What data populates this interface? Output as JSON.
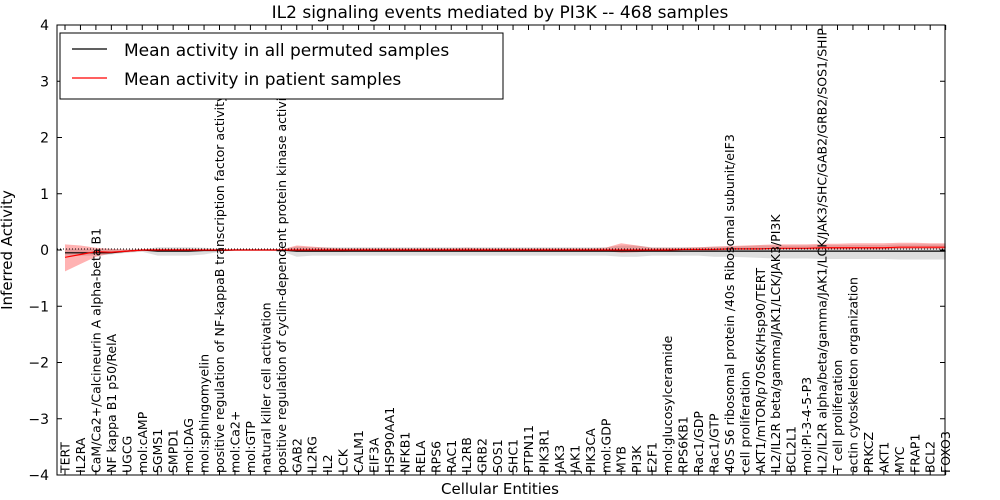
{
  "chart_data": {
    "type": "line",
    "title": "IL2 signaling events mediated by PI3K -- 468 samples",
    "xlabel": "Cellular Entities",
    "ylabel": "Inferred Activity",
    "ylim": [
      -4,
      4
    ],
    "yticks": [
      -4,
      -3,
      -2,
      -1,
      0,
      1,
      2,
      3,
      4
    ],
    "ytick_labels": [
      "−4",
      "−3",
      "−2",
      "−1",
      "0",
      "1",
      "2",
      "3",
      "4"
    ],
    "legend_position": "top-left",
    "categories": [
      "TERT",
      "IL2RA",
      "CaM/Ca2+/Calcineurin A alpha-beta B1",
      "NF kappa B1 p50/RelA",
      "UGCG",
      "mol:cAMP",
      "SGMS1",
      "SMPD1",
      "mol:DAG",
      "mol:sphingomyelin",
      "positive regulation of NF-kappaB transcription factor activity",
      "mol:Ca2+",
      "mol:GTP",
      "natural killer cell activation",
      "positive regulation of cyclin-dependent protein kinase activity",
      "GAB2",
      "IL2RG",
      "IL2",
      "LCK",
      "CALM1",
      "EIF3A",
      "HSP90AA1",
      "NFKB1",
      "RELA",
      "RPS6",
      "RAC1",
      "IL2RB",
      "GRB2",
      "SOS1",
      "SHC1",
      "PTPN11",
      "PIK3R1",
      "JAK3",
      "JAK1",
      "PIK3CA",
      "mol:GDP",
      "MYB",
      "PI3K",
      "E2F1",
      "mol:glucosylceramide",
      "RPS6KB1",
      "Rac1/GDP",
      "Rac1/GTP",
      "40S S6 ribosomal protein /40s Ribosomal subunit/eIF3",
      "cell proliferation",
      "AKT1/mTOR/p70S6K/Hsp90/TERT",
      "IL2/IL2R beta/gamma/JAK1/LCK/JAK3/PI3K",
      "BCL2L1",
      "mol:PI-3-4-5-P3",
      "IL2/IL2R alpha/beta/gamma/JAK1/LCK/JAK3/SHC/GAB2/GRB2/SOS1/SHIP",
      "T cell proliferation",
      "actin cytoskeleton organization",
      "PRKCZ",
      "AKT1",
      "MYC",
      "FRAP1",
      "BCL2",
      "FOXO3"
    ],
    "series": [
      {
        "name": "Mean activity in all permuted samples",
        "color": "#000000",
        "values": [
          -0.05,
          -0.05,
          -0.05,
          -0.05,
          -0.02,
          0,
          -0.02,
          -0.02,
          -0.02,
          -0.01,
          -0.01,
          0,
          0,
          0,
          0,
          -0.02,
          -0.02,
          -0.02,
          -0.02,
          -0.02,
          -0.02,
          -0.02,
          -0.02,
          -0.02,
          -0.02,
          -0.02,
          -0.02,
          -0.02,
          -0.02,
          -0.02,
          -0.02,
          -0.02,
          -0.02,
          -0.02,
          -0.02,
          -0.02,
          -0.02,
          -0.02,
          -0.02,
          -0.02,
          -0.02,
          -0.02,
          -0.02,
          -0.02,
          -0.02,
          -0.02,
          -0.02,
          -0.02,
          -0.02,
          -0.02,
          -0.02,
          -0.02,
          -0.02,
          -0.02,
          -0.02,
          -0.02,
          -0.02,
          -0.02
        ],
        "band_lower": [
          -0.1,
          -0.1,
          -0.1,
          -0.08,
          -0.05,
          -0.03,
          -0.1,
          -0.1,
          -0.1,
          -0.08,
          -0.03,
          -0.01,
          -0.01,
          -0.01,
          -0.02,
          -0.12,
          -0.1,
          -0.1,
          -0.1,
          -0.1,
          -0.1,
          -0.1,
          -0.1,
          -0.1,
          -0.1,
          -0.1,
          -0.1,
          -0.1,
          -0.1,
          -0.1,
          -0.1,
          -0.1,
          -0.1,
          -0.1,
          -0.1,
          -0.1,
          -0.12,
          -0.12,
          -0.1,
          -0.1,
          -0.1,
          -0.1,
          -0.12,
          -0.12,
          -0.13,
          -0.14,
          -0.15,
          -0.15,
          -0.15,
          -0.16,
          -0.16,
          -0.16,
          -0.16,
          -0.16,
          -0.17,
          -0.17,
          -0.17,
          -0.17
        ],
        "band_upper": [
          0.02,
          0.02,
          0.02,
          0.02,
          0.01,
          0.01,
          0.05,
          0.05,
          0.05,
          0.04,
          0.02,
          0.01,
          0.01,
          0.01,
          0.01,
          0.06,
          0.05,
          0.05,
          0.05,
          0.05,
          0.05,
          0.05,
          0.05,
          0.05,
          0.05,
          0.05,
          0.05,
          0.05,
          0.05,
          0.05,
          0.05,
          0.05,
          0.05,
          0.05,
          0.05,
          0.05,
          0.08,
          0.08,
          0.05,
          0.05,
          0.05,
          0.05,
          0.06,
          0.06,
          0.07,
          0.08,
          0.08,
          0.08,
          0.08,
          0.09,
          0.09,
          0.09,
          0.09,
          0.09,
          0.1,
          0.1,
          0.1,
          0.1
        ]
      },
      {
        "name": "Mean activity in patient samples",
        "color": "#ff0000",
        "values": [
          -0.13,
          -0.08,
          -0.03,
          -0.04,
          -0.02,
          0,
          0,
          0,
          0,
          0,
          0,
          0,
          0,
          0,
          0,
          0,
          0,
          0,
          0,
          0,
          0,
          0,
          0,
          0,
          0,
          0,
          0,
          0,
          0,
          0,
          0,
          0,
          0,
          0,
          0,
          0,
          0,
          0,
          0,
          0,
          0.01,
          0.01,
          0.01,
          0.02,
          0.02,
          0.02,
          0.03,
          0.03,
          0.03,
          0.04,
          0.04,
          0.04,
          0.04,
          0.04,
          0.05,
          0.05,
          0.05,
          0.05
        ],
        "band_lower": [
          -0.38,
          -0.25,
          -0.12,
          -0.06,
          -0.04,
          -0.02,
          -0.02,
          -0.02,
          -0.02,
          -0.01,
          -0.01,
          -0.01,
          -0.01,
          -0.01,
          -0.01,
          -0.03,
          -0.03,
          -0.03,
          -0.03,
          -0.02,
          -0.02,
          -0.02,
          -0.02,
          -0.02,
          -0.02,
          -0.02,
          -0.02,
          -0.02,
          -0.02,
          -0.02,
          -0.02,
          -0.02,
          -0.02,
          -0.02,
          -0.02,
          -0.02,
          -0.05,
          -0.04,
          -0.02,
          -0.02,
          -0.01,
          -0.01,
          -0.01,
          0,
          0,
          0,
          0.01,
          0.01,
          0.01,
          0.01,
          0.01,
          0.01,
          0.01,
          0.01,
          0.02,
          0.02,
          0.02,
          0.02
        ],
        "band_upper": [
          0.1,
          0.08,
          0.04,
          0.02,
          0.01,
          0.01,
          0.02,
          0.02,
          0.02,
          0.01,
          0.01,
          0.01,
          0.01,
          0.01,
          0.01,
          0.08,
          0.06,
          0.04,
          0.03,
          0.03,
          0.03,
          0.03,
          0.03,
          0.03,
          0.03,
          0.03,
          0.04,
          0.03,
          0.03,
          0.03,
          0.03,
          0.03,
          0.03,
          0.03,
          0.03,
          0.04,
          0.12,
          0.08,
          0.04,
          0.04,
          0.04,
          0.05,
          0.06,
          0.07,
          0.08,
          0.09,
          0.1,
          0.1,
          0.1,
          0.11,
          0.11,
          0.12,
          0.12,
          0.12,
          0.13,
          0.13,
          0.12,
          0.12
        ]
      }
    ]
  }
}
